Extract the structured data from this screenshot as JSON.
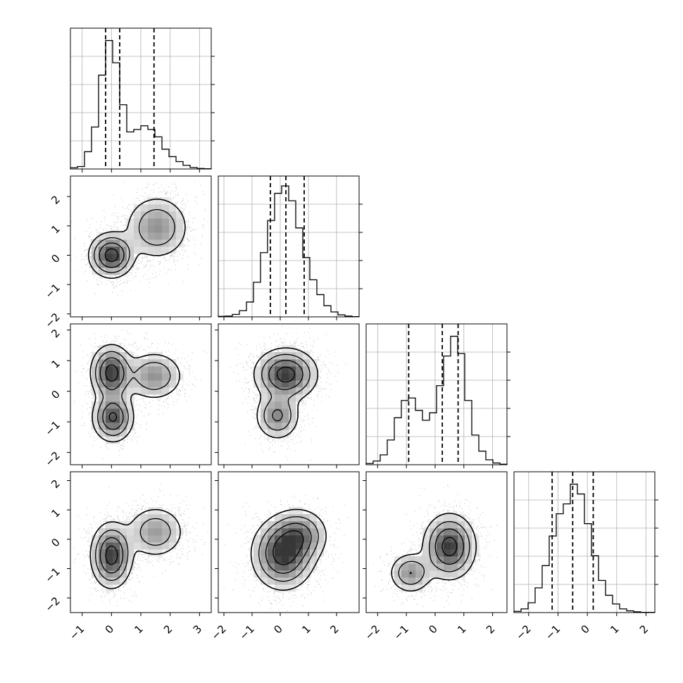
{
  "chart_data": {
    "type": "corner",
    "parameters": [
      "",
      "",
      "",
      ""
    ],
    "grid": true,
    "quantiles": [
      0.16,
      0.5,
      0.84
    ],
    "axis_ticks": [
      {
        "ticks": [
          -1,
          0,
          1,
          2,
          3
        ],
        "labels": [
          "−1",
          "0",
          "1",
          "2",
          "3"
        ]
      },
      {
        "ticks": [
          -2,
          -1,
          0,
          1,
          2
        ],
        "labels": [
          "−2",
          "−1",
          "0",
          "1",
          "2"
        ]
      },
      {
        "ticks": [
          -2,
          -1,
          0,
          1,
          2
        ],
        "labels": [
          "−2",
          "−1",
          "0",
          "1",
          "2"
        ]
      },
      {
        "ticks": [
          -2,
          -1,
          0,
          1,
          2
        ],
        "labels": [
          "−2",
          "−1",
          "0",
          "1",
          "2"
        ]
      }
    ],
    "diagonal_panels": [
      {
        "parameter_index": 0,
        "range": [
          -1.4,
          3.4
        ],
        "ylim": [
          0,
          5.7
        ],
        "bin_edges": [
          -1.4,
          -1.16,
          -0.92,
          -0.68,
          -0.44,
          -0.2,
          0.04,
          0.28,
          0.52,
          0.76,
          1.0,
          1.24,
          1.48,
          1.72,
          1.96,
          2.2,
          2.44,
          2.68,
          2.92,
          3.16,
          3.4
        ],
        "counts": [
          0.05,
          0.1,
          0.7,
          1.7,
          3.8,
          5.2,
          4.3,
          2.6,
          1.5,
          1.6,
          1.75,
          1.6,
          1.3,
          0.8,
          0.5,
          0.3,
          0.15,
          0.06,
          0.02,
          0.01
        ],
        "quantile_values": [
          -0.2,
          0.28,
          1.45
        ]
      },
      {
        "parameter_index": 1,
        "range": [
          -2.2,
          2.8
        ],
        "ylim": [
          0,
          5.7
        ],
        "bin_edges": [
          -2.2,
          -1.95,
          -1.7,
          -1.45,
          -1.2,
          -0.95,
          -0.7,
          -0.45,
          -0.2,
          0.05,
          0.3,
          0.55,
          0.8,
          1.05,
          1.3,
          1.55,
          1.8,
          2.05,
          2.3,
          2.55,
          2.8
        ],
        "counts": [
          0.02,
          0.03,
          0.1,
          0.25,
          0.6,
          1.4,
          2.6,
          3.9,
          5.0,
          5.3,
          4.7,
          3.6,
          2.4,
          1.5,
          0.9,
          0.45,
          0.2,
          0.08,
          0.03,
          0.01
        ],
        "quantile_values": [
          -0.35,
          0.2,
          0.85
        ]
      },
      {
        "parameter_index": 2,
        "range": [
          -2.4,
          2.5
        ],
        "ylim": [
          0,
          5.7
        ],
        "bin_edges": [
          -2.4,
          -2.155,
          -1.91,
          -1.665,
          -1.42,
          -1.175,
          -0.93,
          -0.685,
          -0.44,
          -0.195,
          0.05,
          0.295,
          0.54,
          0.785,
          1.03,
          1.275,
          1.52,
          1.765,
          2.01,
          2.255,
          2.5
        ],
        "counts": [
          0.05,
          0.15,
          0.4,
          1.0,
          1.9,
          2.6,
          2.7,
          2.2,
          1.8,
          2.1,
          3.2,
          4.4,
          5.2,
          4.5,
          2.6,
          1.2,
          0.55,
          0.2,
          0.07,
          0.02
        ],
        "quantile_values": [
          -0.92,
          0.25,
          0.8
        ]
      },
      {
        "parameter_index": 3,
        "range": [
          -2.5,
          2.3
        ],
        "ylim": [
          0,
          5.7
        ],
        "bin_edges": [
          -2.5,
          -2.26,
          -2.02,
          -1.78,
          -1.54,
          -1.3,
          -1.06,
          -0.82,
          -0.58,
          -0.34,
          -0.1,
          0.14,
          0.38,
          0.62,
          0.86,
          1.1,
          1.34,
          1.58,
          1.82,
          2.06,
          2.3
        ],
        "counts": [
          0.05,
          0.15,
          0.4,
          1.0,
          1.9,
          3.1,
          4.0,
          4.4,
          5.2,
          4.8,
          3.6,
          2.3,
          1.3,
          0.7,
          0.35,
          0.15,
          0.07,
          0.03,
          0.01,
          0.01
        ],
        "quantile_values": [
          -1.2,
          -0.5,
          0.2
        ]
      }
    ],
    "off_diagonal_panels": [
      {
        "x_param": 0,
        "y_param": 1,
        "xlim": [
          -1.4,
          3.4
        ],
        "ylim": [
          -2.1,
          2.7
        ],
        "density_modes": [
          {
            "cx": 0,
            "cy": 0,
            "sx": 0.38,
            "sy": 0.38,
            "weight": 1.0
          },
          {
            "cx": 1.55,
            "cy": 0.95,
            "sx": 0.55,
            "sy": 0.55,
            "weight": 0.55
          }
        ]
      },
      {
        "x_param": 0,
        "y_param": 2,
        "xlim": [
          -1.4,
          3.4
        ],
        "ylim": [
          -2.4,
          2.2
        ],
        "density_modes": [
          {
            "cx": 0,
            "cy": 0.6,
            "sx": 0.35,
            "sy": 0.45,
            "weight": 1.0
          },
          {
            "cx": 0.05,
            "cy": -0.85,
            "sx": 0.35,
            "sy": 0.4,
            "weight": 0.9
          },
          {
            "cx": 1.45,
            "cy": 0.5,
            "sx": 0.5,
            "sy": 0.4,
            "weight": 0.55
          }
        ]
      },
      {
        "x_param": 1,
        "y_param": 2,
        "xlim": [
          -2.2,
          2.8
        ],
        "ylim": [
          -2.4,
          2.2
        ],
        "density_modes": [
          {
            "cx": 0.2,
            "cy": 0.55,
            "sx": 0.55,
            "sy": 0.42,
            "weight": 1.0
          },
          {
            "cx": -0.1,
            "cy": -0.8,
            "sx": 0.4,
            "sy": 0.4,
            "weight": 0.6
          }
        ]
      },
      {
        "x_param": 0,
        "y_param": 3,
        "xlim": [
          -1.4,
          3.4
        ],
        "ylim": [
          -2.5,
          2.3
        ],
        "density_modes": [
          {
            "cx": 0,
            "cy": -0.55,
            "sx": 0.35,
            "sy": 0.55,
            "weight": 1.0
          },
          {
            "cx": 1.5,
            "cy": 0.25,
            "sx": 0.5,
            "sy": 0.45,
            "weight": 0.5
          }
        ]
      },
      {
        "x_param": 1,
        "y_param": 3,
        "xlim": [
          -2.2,
          2.8
        ],
        "ylim": [
          -2.5,
          2.3
        ],
        "density_modes": [
          {
            "cx": 0.1,
            "cy": -0.5,
            "sx": 0.55,
            "sy": 0.6,
            "weight": 1.0
          },
          {
            "cx": 0.7,
            "cy": 0.15,
            "sx": 0.5,
            "sy": 0.45,
            "weight": 0.6
          }
        ]
      },
      {
        "x_param": 2,
        "y_param": 3,
        "xlim": [
          -2.4,
          2.5
        ],
        "ylim": [
          -2.5,
          2.3
        ],
        "density_modes": [
          {
            "cx": 0.5,
            "cy": -0.25,
            "sx": 0.45,
            "sy": 0.55,
            "weight": 1.0
          },
          {
            "cx": -0.85,
            "cy": -1.15,
            "sx": 0.38,
            "sy": 0.35,
            "weight": 0.55
          }
        ]
      }
    ],
    "contour_levels": [
      0.12,
      0.3,
      0.55,
      0.85
    ],
    "annotations": []
  }
}
